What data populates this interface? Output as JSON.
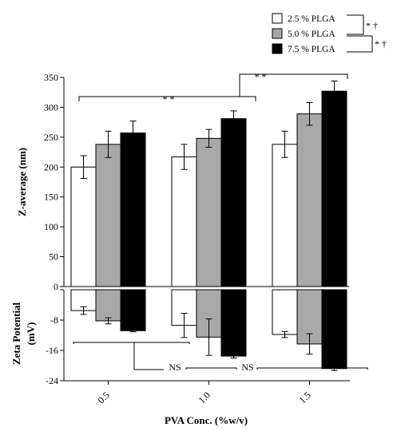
{
  "chart_data": [
    {
      "type": "bar",
      "panel": "top",
      "categories": [
        "0.5",
        "1.0",
        "1.5"
      ],
      "ylabel": "Z-average (nm)",
      "ylim": [
        0,
        350
      ],
      "yticks": [
        "0",
        "50",
        "100",
        "150",
        "200",
        "250",
        "300",
        "350"
      ],
      "series": [
        {
          "name": "2.5 % PLGA",
          "color": "#ffffff",
          "values": [
            200,
            217,
            238
          ],
          "errors": [
            19,
            21,
            22
          ]
        },
        {
          "name": "5.0 % PLGA",
          "color": "#a8a8a8",
          "values": [
            238,
            248,
            289
          ],
          "errors": [
            22,
            15,
            19
          ]
        },
        {
          "name": "7.5 % PLGA",
          "color": "#000000",
          "values": [
            257,
            281,
            327
          ],
          "errors": [
            20,
            13,
            17
          ]
        }
      ],
      "annotations": [
        "* *",
        "* *"
      ]
    },
    {
      "type": "bar",
      "panel": "bottom",
      "categories": [
        "0.5",
        "1.0",
        "1.5"
      ],
      "ylabel": "Zeta Potential (mV)",
      "ylim": [
        -24,
        0
      ],
      "yticks": [
        "-8",
        "-16",
        "-24"
      ],
      "series": [
        {
          "name": "2.5 % PLGA",
          "color": "#ffffff",
          "values": [
            -5.5,
            -9.4,
            -11.8
          ],
          "errors": [
            1.0,
            3.2,
            0.8
          ]
        },
        {
          "name": "5.0 % PLGA",
          "color": "#a8a8a8",
          "values": [
            -8.2,
            -12.5,
            -14.3
          ],
          "errors": [
            0.8,
            4.8,
            2.7
          ]
        },
        {
          "name": "7.5 % PLGA",
          "color": "#000000",
          "values": [
            -10.8,
            -17.5,
            -20.8
          ],
          "errors": [
            0.3,
            0.5,
            0.5
          ]
        }
      ],
      "annotations": [
        "NS",
        "NS"
      ]
    }
  ],
  "xlabel": "PVA Conc. (%w/v)",
  "legend": {
    "position": "top-right",
    "items": [
      "2.5 % PLGA",
      "5.0 % PLGA",
      "7.5 % PLGA"
    ],
    "significance": [
      "* †",
      "* †"
    ]
  }
}
